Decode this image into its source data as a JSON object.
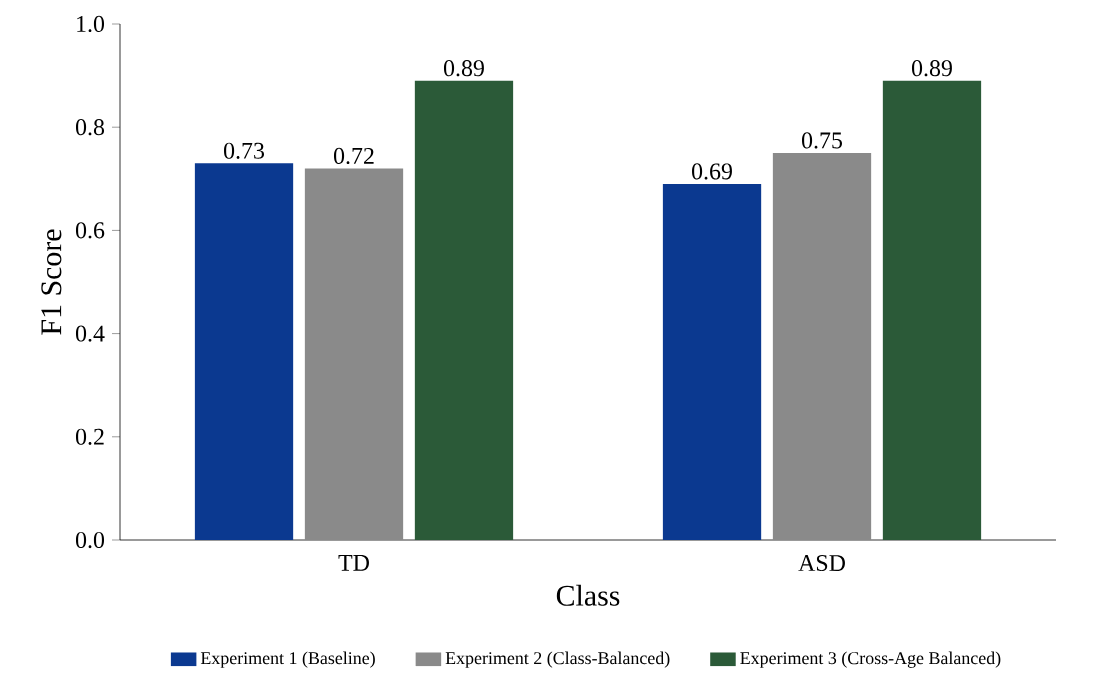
{
  "chart_data": {
    "type": "bar",
    "xlabel": "Class",
    "ylabel": "F1 Score",
    "categories": [
      "TD",
      "ASD"
    ],
    "series": [
      {
        "name": "Experiment 1 (Baseline)",
        "color": "#0b3990",
        "values": [
          0.73,
          0.69
        ]
      },
      {
        "name": "Experiment 2 (Class-Balanced)",
        "color": "#8a8a8a",
        "values": [
          0.72,
          0.75
        ]
      },
      {
        "name": "Experiment 3 (Cross-Age Balanced)",
        "color": "#2b5a38",
        "values": [
          0.89,
          0.89
        ]
      }
    ],
    "ylim": [
      0,
      1.0
    ],
    "yticks": [
      {
        "value": 0,
        "label": "0.0"
      },
      {
        "value": 0.2,
        "label": "0.2"
      },
      {
        "value": 0.4,
        "label": "0.4"
      },
      {
        "value": 0.6,
        "label": "0.6"
      },
      {
        "value": 0.8,
        "label": "0.8"
      },
      {
        "value": 1.0,
        "label": "1.0"
      }
    ],
    "data_labels": true,
    "grid": false,
    "legend": "bottom"
  }
}
